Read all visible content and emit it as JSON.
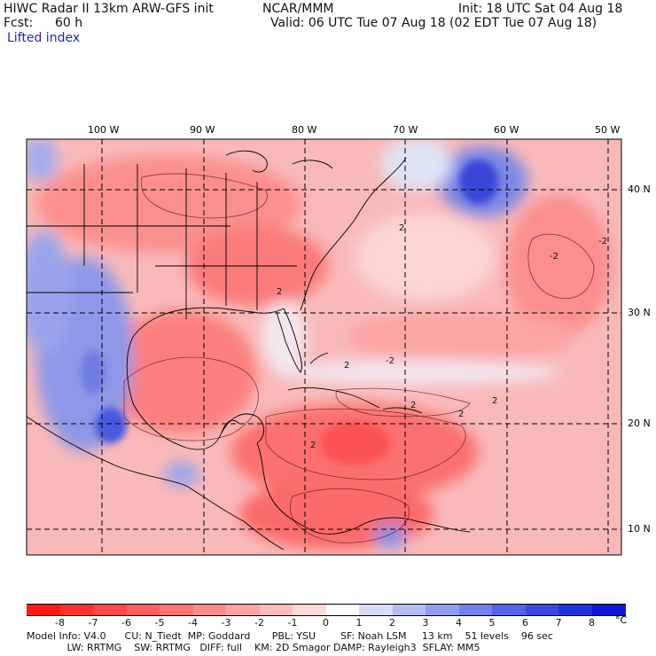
{
  "header": {
    "title": "HIWC Radar II 13km ARW-GFS init",
    "center": "NCAR/MMM",
    "init": "Init: 18 UTC Sat 04 Aug 18",
    "fcst_label": "Fcst:",
    "fcst_value": "60 h",
    "valid": "Valid: 06 UTC Tue 07 Aug 18 (02 EDT Tue 07 Aug 18)",
    "field": "Lifted index"
  },
  "map": {
    "lon_labels": [
      "100 W",
      "90 W",
      "80 W",
      "70 W",
      "60 W",
      "50 W"
    ],
    "lat_labels": [
      "40 N",
      "30 N",
      "20 N",
      "10 N"
    ],
    "contour_labels": [
      "2",
      "-2",
      "2",
      "2",
      "-2",
      "-2",
      "2",
      "2",
      "2",
      "2"
    ],
    "colors": {
      "frame": "#000000",
      "grid": "#000000",
      "coast": "#000000",
      "deep_red": "#ff4a4a",
      "mid_red": "#fa8a8a",
      "light_red": "#fcc7c7",
      "near_zero": "#f7ecec",
      "light_blue": "#c8cff5",
      "blue": "#5a6ae0",
      "deep_blue": "#2a30d8"
    }
  },
  "colorbar": {
    "labels": [
      "-8",
      "-7",
      "-6",
      "-5",
      "-4",
      "-3",
      "-2",
      "-1",
      "0",
      "1",
      "2",
      "3",
      "4",
      "5",
      "6",
      "7",
      "8"
    ],
    "unit": "°C",
    "colors": [
      "#ff1a1a",
      "#ff3030",
      "#ff4848",
      "#ff5e5e",
      "#ff7474",
      "#ff8a8a",
      "#ffa2a2",
      "#ffbcbc",
      "#ffd8d8",
      "#ffffff",
      "#d8dcf8",
      "#b6bdf2",
      "#939def",
      "#7380ea",
      "#5563e6",
      "#3a48e0",
      "#2331dc",
      "#1018d6"
    ]
  },
  "footer": {
    "line1": "Model Info: V4.0      CU: N_Tiedt  MP: Goddard       PBL: YSU        SF: Noah LSM     13 km    51 levels    96 sec",
    "line2": "             LW: RRTMG    SW: RRTMG   DIFF: full    KM: 2D Smagor DAMP: Rayleigh3  SFLAY: MM5"
  }
}
